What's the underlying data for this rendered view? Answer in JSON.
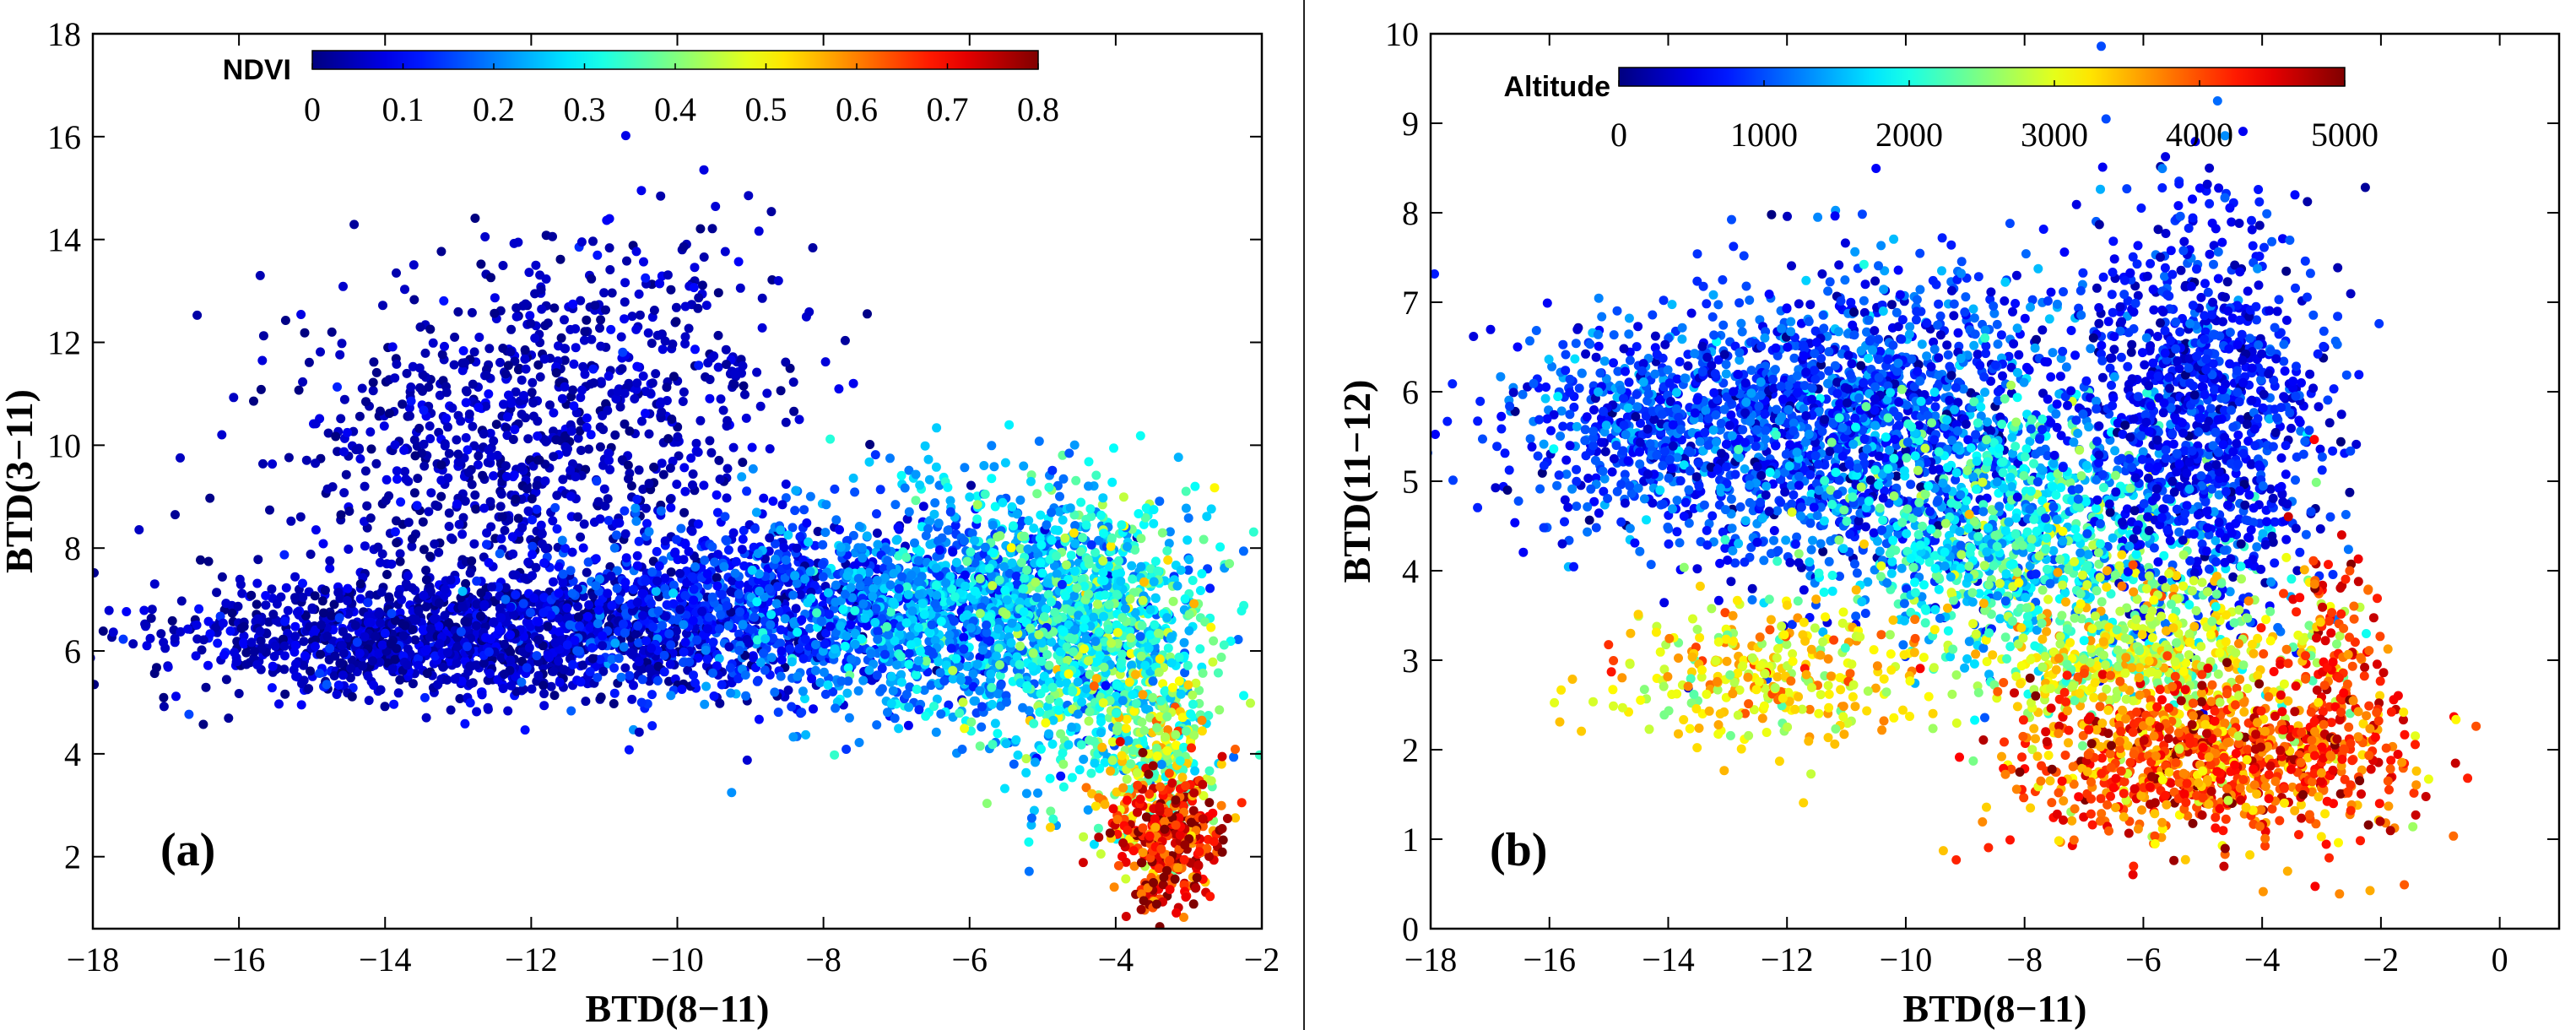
{
  "chart_data": [
    {
      "type": "scatter",
      "panel_label": "(a)",
      "xlabel": "BTD(8−11)",
      "ylabel": "BTD(3−11)",
      "xlim": [
        -18,
        -2
      ],
      "ylim": [
        0.6,
        18
      ],
      "x_ticks": [
        -18,
        -16,
        -14,
        -12,
        -10,
        -8,
        -6,
        -4,
        -2
      ],
      "x_tick_labels": [
        "−18",
        "−16",
        "−14",
        "−12",
        "−10",
        "−8",
        "−6",
        "−4",
        "−2"
      ],
      "y_ticks": [
        2,
        4,
        6,
        8,
        10,
        12,
        14,
        16,
        18
      ],
      "y_tick_labels": [
        "2",
        "4",
        "6",
        "8",
        "10",
        "12",
        "14",
        "16",
        "18"
      ],
      "colorbar": {
        "title": "NDVI",
        "range": [
          0,
          0.8
        ],
        "ticks": [
          0,
          0.1,
          0.2,
          0.3,
          0.4,
          0.5,
          0.6,
          0.7,
          0.8
        ],
        "tick_labels": [
          "0",
          "0.1",
          "0.2",
          "0.3",
          "0.4",
          "0.5",
          "0.6",
          "0.7",
          "0.8"
        ],
        "colormap": "jet"
      },
      "clusters": [
        {
          "x": -13.0,
          "y": 6.3,
          "sx": 2.0,
          "sy": 0.6,
          "value": 0.05,
          "value_spread": 0.04,
          "count": 1400
        },
        {
          "x": -12.5,
          "y": 10.0,
          "sx": 1.4,
          "sy": 1.7,
          "value": 0.04,
          "value_spread": 0.03,
          "count": 650
        },
        {
          "x": -10.5,
          "y": 11.5,
          "sx": 1.2,
          "sy": 1.5,
          "value": 0.05,
          "value_spread": 0.03,
          "count": 300
        },
        {
          "x": -9.0,
          "y": 6.8,
          "sx": 1.5,
          "sy": 0.9,
          "value": 0.12,
          "value_spread": 0.05,
          "count": 1000
        },
        {
          "x": -6.0,
          "y": 6.8,
          "sx": 1.3,
          "sy": 1.1,
          "value": 0.22,
          "value_spread": 0.06,
          "count": 1300
        },
        {
          "x": -4.2,
          "y": 6.3,
          "sx": 0.8,
          "sy": 1.4,
          "value": 0.32,
          "value_spread": 0.08,
          "count": 800
        },
        {
          "x": -3.5,
          "y": 4.0,
          "sx": 0.45,
          "sy": 1.0,
          "value": 0.45,
          "value_spread": 0.1,
          "count": 260
        },
        {
          "x": -3.3,
          "y": 2.3,
          "sx": 0.35,
          "sy": 0.7,
          "value": 0.7,
          "value_spread": 0.08,
          "count": 320
        }
      ]
    },
    {
      "type": "scatter",
      "panel_label": "(b)",
      "xlabel": "BTD(8−11)",
      "ylabel": "BTD(11−12)",
      "xlim": [
        -18,
        1
      ],
      "ylim": [
        0,
        10
      ],
      "x_ticks": [
        -18,
        -16,
        -14,
        -12,
        -10,
        -8,
        -6,
        -4,
        -2,
        0
      ],
      "x_tick_labels": [
        "−18",
        "−16",
        "−14",
        "−12",
        "−10",
        "−8",
        "−6",
        "−4",
        "−2",
        "0"
      ],
      "y_ticks": [
        0,
        1,
        2,
        3,
        4,
        5,
        6,
        7,
        8,
        9,
        10
      ],
      "y_tick_labels": [
        "0",
        "1",
        "2",
        "3",
        "4",
        "5",
        "6",
        "7",
        "8",
        "9",
        "10"
      ],
      "colorbar": {
        "title": "Altitude",
        "range": [
          0,
          5000
        ],
        "ticks": [
          0,
          1000,
          2000,
          3000,
          4000,
          5000
        ],
        "tick_labels": [
          "0",
          "1000",
          "2000",
          "3000",
          "4000",
          "5000"
        ],
        "colormap": "jet"
      },
      "clusters": [
        {
          "x": -14.0,
          "y": 5.6,
          "sx": 1.5,
          "sy": 0.6,
          "value": 900,
          "value_spread": 350,
          "count": 700
        },
        {
          "x": -10.5,
          "y": 5.6,
          "sx": 1.8,
          "sy": 0.9,
          "value": 900,
          "value_spread": 400,
          "count": 1500
        },
        {
          "x": -8.0,
          "y": 4.4,
          "sx": 1.6,
          "sy": 0.7,
          "value": 1900,
          "value_spread": 500,
          "count": 900
        },
        {
          "x": -5.0,
          "y": 5.8,
          "sx": 1.0,
          "sy": 1.1,
          "value": 700,
          "value_spread": 300,
          "count": 1100
        },
        {
          "x": -6.0,
          "y": 3.1,
          "sx": 1.4,
          "sy": 0.45,
          "value": 2900,
          "value_spread": 450,
          "count": 550
        },
        {
          "x": -5.0,
          "y": 1.9,
          "sx": 1.6,
          "sy": 0.45,
          "value": 4000,
          "value_spread": 500,
          "count": 900
        },
        {
          "x": -12.5,
          "y": 2.8,
          "sx": 1.3,
          "sy": 0.4,
          "value": 3200,
          "value_spread": 450,
          "count": 320
        },
        {
          "x": -2.8,
          "y": 2.7,
          "sx": 0.5,
          "sy": 0.8,
          "value": 4200,
          "value_spread": 400,
          "count": 180
        }
      ]
    }
  ]
}
